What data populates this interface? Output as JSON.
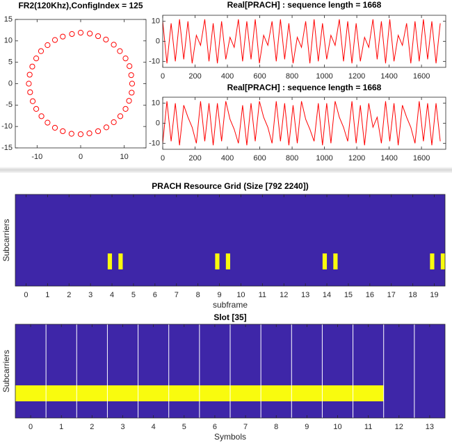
{
  "chart_data": [
    {
      "type": "scatter",
      "title": "FR2(120Khz),ConfigIndex = 125",
      "color": "#ff0000",
      "x": [
        11.8,
        11.6,
        11.2,
        10.3,
        9.0,
        7.6,
        5.8,
        4.0,
        2.1,
        0.0,
        -2.0,
        -4.1,
        -5.9,
        -7.6,
        -9.1,
        -10.2,
        -11.1,
        -11.7,
        -11.9,
        -11.6,
        -11.0,
        -10.2,
        -9.0,
        -7.6,
        -5.9,
        -4.1,
        -2.1,
        0.0,
        2.0,
        4.0,
        5.9,
        7.6,
        9.1,
        10.3,
        11.1,
        11.7
      ],
      "y": [
        0.0,
        2.0,
        4.1,
        5.9,
        7.6,
        9.1,
        10.3,
        11.1,
        11.7,
        11.9,
        11.6,
        11.0,
        10.2,
        9.0,
        7.6,
        5.9,
        4.0,
        2.1,
        0.0,
        -2.0,
        -4.1,
        -5.9,
        -7.6,
        -9.1,
        -10.3,
        -11.1,
        -11.7,
        -11.8,
        -11.6,
        -11.1,
        -10.2,
        -9.0,
        -7.6,
        -5.9,
        -4.0,
        -2.1
      ],
      "xlim": [
        -15,
        15
      ],
      "xticks": [
        -10,
        0,
        10
      ],
      "ylim": [
        -15,
        15
      ],
      "yticks": [
        -15,
        -10,
        -5,
        0,
        5,
        10,
        15
      ]
    },
    {
      "type": "line",
      "title": "Real[PRACH] : sequence length = 1668",
      "color": "#ff0000",
      "x": [
        0,
        26,
        52,
        78,
        104,
        130,
        156,
        182,
        208,
        234,
        260,
        286,
        312,
        338,
        364,
        390,
        416,
        442,
        468,
        494,
        520,
        546,
        572,
        598,
        624,
        650,
        676,
        702,
        728,
        754,
        780,
        806,
        832,
        858,
        884,
        910,
        936,
        962,
        988,
        1014,
        1040,
        1066,
        1092,
        1118,
        1144,
        1170,
        1196,
        1222,
        1248,
        1274,
        1300,
        1326,
        1352,
        1378,
        1404,
        1430,
        1456,
        1482,
        1508,
        1534,
        1560,
        1586,
        1612,
        1638,
        1664,
        1690,
        1716
      ],
      "values": [
        10,
        -11,
        9,
        -10,
        11,
        -9,
        10,
        -11,
        3,
        -2,
        11,
        -10,
        9,
        -11,
        10,
        -9,
        2,
        -3,
        11,
        -10,
        10,
        -9,
        11,
        -11,
        3,
        -2,
        10,
        -10,
        11,
        -9,
        9,
        -11,
        2,
        -3,
        10,
        -11,
        11,
        -10,
        9,
        -9,
        3,
        -2,
        11,
        -10,
        10,
        -11,
        9,
        -10,
        2,
        -3,
        11,
        -9,
        10,
        -11,
        11,
        -10,
        3,
        -2,
        9,
        -11,
        10,
        -10,
        11,
        -9,
        10,
        -11,
        9
      ],
      "xlim": [
        0,
        1750
      ],
      "xticks": [
        0,
        200,
        400,
        600,
        800,
        1000,
        1200,
        1400,
        1600
      ],
      "ylim": [
        -13,
        13
      ],
      "yticks": [
        -10,
        0,
        10
      ]
    },
    {
      "type": "line",
      "title": "Real[PRACH] : sequence length = 1668",
      "color": "#ff0000",
      "x": [
        0,
        26,
        52,
        78,
        104,
        130,
        156,
        182,
        208,
        234,
        260,
        286,
        312,
        338,
        364,
        390,
        416,
        442,
        468,
        494,
        520,
        546,
        572,
        598,
        624,
        650,
        676,
        702,
        728,
        754,
        780,
        806,
        832,
        858,
        884,
        910,
        936,
        962,
        988,
        1014,
        1040,
        1066,
        1092,
        1118,
        1144,
        1170,
        1196,
        1222,
        1248,
        1274,
        1300,
        1326,
        1352,
        1378,
        1404,
        1430,
        1456,
        1482,
        1508,
        1534,
        1560,
        1586,
        1612,
        1638,
        1664,
        1690,
        1716
      ],
      "values": [
        -10,
        11,
        -9,
        10,
        -11,
        9,
        3,
        -2,
        -10,
        11,
        -9,
        10,
        -11,
        10,
        -9,
        11,
        2,
        -3,
        -10,
        9,
        -11,
        10,
        -9,
        11,
        3,
        -2,
        -10,
        11,
        -9,
        10,
        -11,
        9,
        -10,
        11,
        2,
        -3,
        -9,
        10,
        -11,
        10,
        -10,
        11,
        3,
        -2,
        -9,
        11,
        -10,
        9,
        -11,
        10,
        -2,
        3,
        -10,
        11,
        -9,
        10,
        -11,
        9,
        3,
        -2,
        -10,
        11,
        -9,
        10,
        -11,
        10,
        -9
      ],
      "xlim": [
        0,
        1750
      ],
      "xticks": [
        0,
        200,
        400,
        600,
        800,
        1000,
        1200,
        1400,
        1600
      ],
      "ylim": [
        -13,
        13
      ],
      "yticks": [
        -10,
        0,
        10
      ]
    },
    {
      "type": "grid",
      "title": "PRACH Resource Grid (Size [792 2240])",
      "x_label": "subframe",
      "y_label": "Subcarriers",
      "background": "#3e26a8",
      "color": "#f9fb0e",
      "xlim": [
        -0.5,
        19.5
      ],
      "xticks": [
        0,
        1,
        2,
        3,
        4,
        5,
        6,
        7,
        8,
        9,
        10,
        11,
        12,
        13,
        14,
        15,
        16,
        17,
        18,
        19
      ],
      "ylim": [
        0,
        792
      ],
      "blocks": [
        {
          "x0": 3.8,
          "x1": 4.0,
          "y0": 144,
          "y1": 282
        },
        {
          "x0": 4.3,
          "x1": 4.5,
          "y0": 144,
          "y1": 282
        },
        {
          "x0": 8.8,
          "x1": 9.0,
          "y0": 144,
          "y1": 282
        },
        {
          "x0": 9.3,
          "x1": 9.5,
          "y0": 144,
          "y1": 282
        },
        {
          "x0": 13.8,
          "x1": 14.0,
          "y0": 144,
          "y1": 282
        },
        {
          "x0": 14.3,
          "x1": 14.5,
          "y0": 144,
          "y1": 282
        },
        {
          "x0": 18.8,
          "x1": 19.0,
          "y0": 144,
          "y1": 282
        },
        {
          "x0": 19.3,
          "x1": 19.5,
          "y0": 144,
          "y1": 282
        }
      ]
    },
    {
      "type": "grid",
      "title": "Slot [35]",
      "x_label": "Symbols",
      "y_label": "Subcarriers",
      "background": "#3e26a8",
      "color": "#f9fb0e",
      "separator_color": "#ffffff",
      "xlim": [
        -0.5,
        13.5
      ],
      "xticks": [
        0,
        1,
        2,
        3,
        4,
        5,
        6,
        7,
        8,
        9,
        10,
        11,
        12,
        13
      ],
      "ylim": [
        0,
        792
      ],
      "separators": [
        0.5,
        1.5,
        2.5,
        3.5,
        4.5,
        5.5,
        6.5,
        7.5,
        8.5,
        9.5,
        10.5,
        11.5,
        12.5
      ],
      "blocks": [
        {
          "x0": -0.5,
          "x1": 11.5,
          "y0": 141,
          "y1": 276
        }
      ]
    }
  ]
}
